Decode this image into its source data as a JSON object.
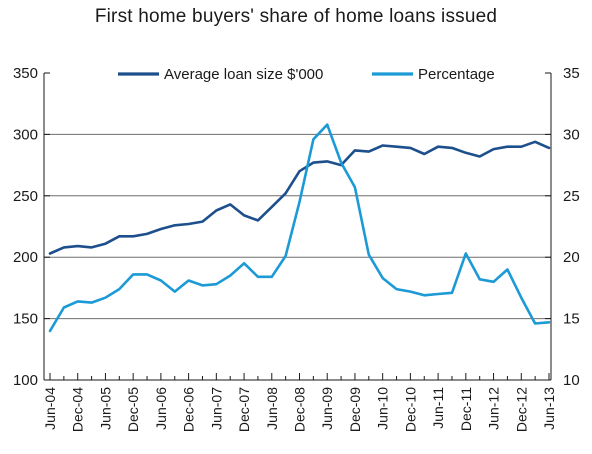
{
  "chart_data": {
    "type": "line",
    "title": "First home buyers' share of home loans issued",
    "x": [
      "Jun-04",
      "Sep-04",
      "Dec-04",
      "Mar-05",
      "Jun-05",
      "Sep-05",
      "Dec-05",
      "Mar-06",
      "Jun-06",
      "Sep-06",
      "Dec-06",
      "Mar-07",
      "Jun-07",
      "Sep-07",
      "Dec-07",
      "Mar-08",
      "Jun-08",
      "Sep-08",
      "Dec-08",
      "Mar-09",
      "Jun-09",
      "Sep-09",
      "Dec-09",
      "Mar-10",
      "Jun-10",
      "Sep-10",
      "Dec-10",
      "Mar-11",
      "Jun-11",
      "Sep-11",
      "Dec-11",
      "Mar-12",
      "Jun-12",
      "Sep-12",
      "Dec-12",
      "Mar-13",
      "Jun-13"
    ],
    "x_tick_labels": [
      "Jun-04",
      "Dec-04",
      "Jun-05",
      "Dec-05",
      "Jun-06",
      "Dec-06",
      "Jun-07",
      "Dec-07",
      "Jun-08",
      "Dec-08",
      "Jun-09",
      "Dec-09",
      "Jun-10",
      "Dec-10",
      "Jun-11",
      "Dec-11",
      "Jun-12",
      "Dec-12",
      "Jun-13"
    ],
    "left_axis": {
      "ylim": [
        100,
        350
      ],
      "ticks": [
        "100",
        "150",
        "200",
        "250",
        "300",
        "350"
      ]
    },
    "right_axis": {
      "ylim": [
        10,
        35
      ],
      "ticks": [
        "10",
        "15",
        "20",
        "25",
        "30",
        "35"
      ]
    },
    "grid": true,
    "legend_position": "top",
    "series": [
      {
        "name": "Average loan size $'000",
        "axis": "left",
        "color": "#1c4f8c",
        "values": [
          203,
          208,
          209,
          208,
          211,
          217,
          217,
          219,
          223,
          226,
          227,
          229,
          238,
          243,
          234,
          230,
          241,
          252,
          270,
          277,
          278,
          275,
          287,
          286,
          291,
          290,
          289,
          284,
          290,
          289,
          285,
          282,
          288,
          290,
          290,
          294,
          289
        ]
      },
      {
        "name": "Percentage",
        "axis": "right",
        "color": "#1b9ad6",
        "values": [
          14.0,
          15.9,
          16.4,
          16.3,
          16.7,
          17.4,
          18.6,
          18.6,
          18.1,
          17.2,
          18.1,
          17.7,
          17.8,
          18.5,
          19.5,
          18.4,
          18.4,
          20.1,
          24.5,
          29.6,
          30.8,
          27.7,
          25.7,
          20.2,
          18.3,
          17.4,
          17.2,
          16.9,
          17.0,
          17.1,
          20.3,
          18.2,
          18.0,
          19.0,
          16.7,
          14.6,
          14.7
        ]
      }
    ]
  }
}
